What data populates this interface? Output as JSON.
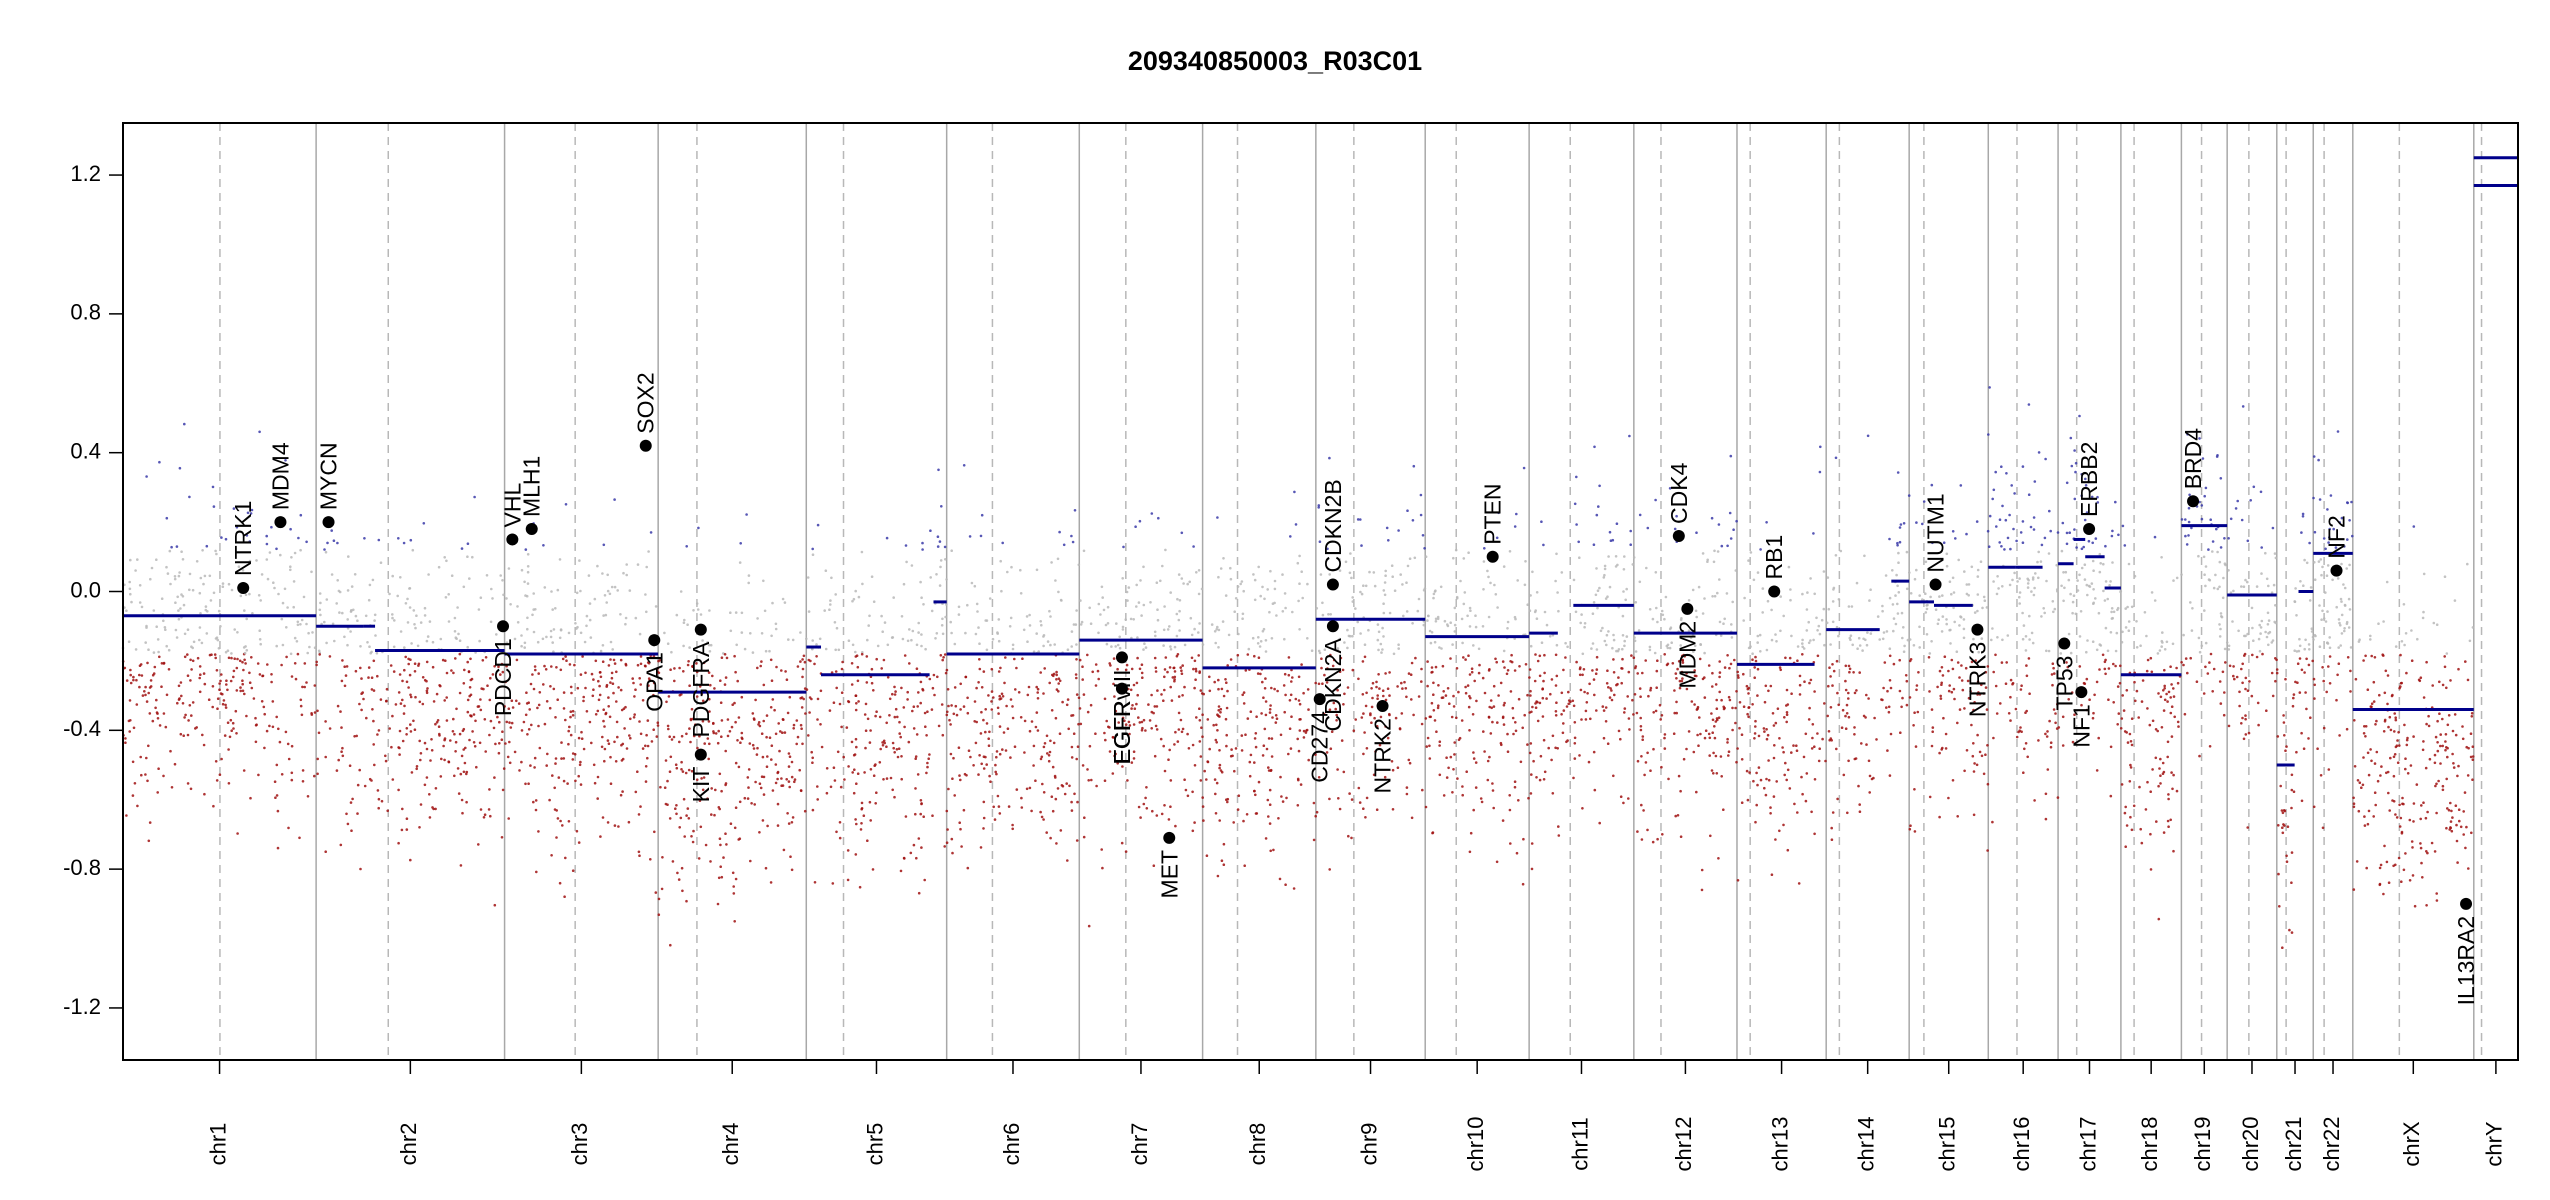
{
  "chart_data": {
    "type": "scatter",
    "title": "209340850003_R03C01",
    "xlabel": "",
    "ylabel": "",
    "ylim": [
      -1.35,
      1.35
    ],
    "y_ticks": [
      1.2,
      0.8,
      0.4,
      0.0,
      -0.4,
      -0.8,
      -1.2
    ],
    "y_tick_labels": [
      "1.2",
      "0.8",
      "0.4",
      "0.0",
      "-0.4",
      "-0.8",
      "-1.2"
    ],
    "grid": false,
    "point_colors": {
      "gain": "#3a3aa8",
      "neutral": "#b8b8b8",
      "loss": "#a01010",
      "segment": "#00008b",
      "gene": "#000000"
    },
    "chromosomes": [
      {
        "name": "chr1",
        "start": 0,
        "end": 249,
        "centromere": 125
      },
      {
        "name": "chr2",
        "start": 249,
        "end": 492,
        "centromere": 93
      },
      {
        "name": "chr3",
        "start": 492,
        "end": 690,
        "centromere": 91
      },
      {
        "name": "chr4",
        "start": 690,
        "end": 881,
        "centromere": 50
      },
      {
        "name": "chr5",
        "start": 881,
        "end": 1062,
        "centromere": 48
      },
      {
        "name": "chr6",
        "start": 1062,
        "end": 1233,
        "centromere": 59
      },
      {
        "name": "chr7",
        "start": 1233,
        "end": 1392,
        "centromere": 60
      },
      {
        "name": "chr8",
        "start": 1392,
        "end": 1538,
        "centromere": 45
      },
      {
        "name": "chr9",
        "start": 1538,
        "end": 1679,
        "centromere": 49
      },
      {
        "name": "chr10",
        "start": 1679,
        "end": 1813,
        "centromere": 40
      },
      {
        "name": "chr11",
        "start": 1813,
        "end": 1948,
        "centromere": 53
      },
      {
        "name": "chr12",
        "start": 1948,
        "end": 2081,
        "centromere": 35
      },
      {
        "name": "chr13",
        "start": 2081,
        "end": 2196,
        "centromere": 17
      },
      {
        "name": "chr14",
        "start": 2196,
        "end": 2303,
        "centromere": 17
      },
      {
        "name": "chr15",
        "start": 2303,
        "end": 2405,
        "centromere": 19
      },
      {
        "name": "chr16",
        "start": 2405,
        "end": 2495,
        "centromere": 37
      },
      {
        "name": "chr17",
        "start": 2495,
        "end": 2576,
        "centromere": 24
      },
      {
        "name": "chr18",
        "start": 2576,
        "end": 2654,
        "centromere": 17
      },
      {
        "name": "chr19",
        "start": 2654,
        "end": 2713,
        "centromere": 26
      },
      {
        "name": "chr20",
        "start": 2713,
        "end": 2777,
        "centromere": 28
      },
      {
        "name": "chr21",
        "start": 2777,
        "end": 2824,
        "centromere": 12
      },
      {
        "name": "chr22",
        "start": 2824,
        "end": 2875,
        "centromere": 14
      },
      {
        "name": "chrX",
        "start": 2875,
        "end": 3031,
        "centromere": 60
      },
      {
        "name": "chrY",
        "start": 3031,
        "end": 3088,
        "centromere": 10
      }
    ],
    "segments": [
      {
        "chr": "chr1",
        "x0": 0,
        "x1": 249,
        "y": -0.07
      },
      {
        "chr": "chr2",
        "x0": 249,
        "x1": 310,
        "y": -0.1
      },
      {
        "chr": "chr2",
        "x0": 310,
        "x1": 325,
        "y": -0.1
      },
      {
        "chr": "chr2",
        "x0": 325,
        "x1": 492,
        "y": -0.17
      },
      {
        "chr": "chr3",
        "x0": 492,
        "x1": 690,
        "y": -0.18
      },
      {
        "chr": "chr4",
        "x0": 690,
        "x1": 881,
        "y": -0.29
      },
      {
        "chr": "chr5",
        "x0": 881,
        "x1": 900,
        "y": -0.16
      },
      {
        "chr": "chr5",
        "x0": 900,
        "x1": 1040,
        "y": -0.24
      },
      {
        "chr": "chr5",
        "x0": 1045,
        "x1": 1062,
        "y": -0.03
      },
      {
        "chr": "chr6",
        "x0": 1062,
        "x1": 1233,
        "y": -0.18
      },
      {
        "chr": "chr7",
        "x0": 1233,
        "x1": 1392,
        "y": -0.14
      },
      {
        "chr": "chr8",
        "x0": 1392,
        "x1": 1538,
        "y": -0.22
      },
      {
        "chr": "chr9",
        "x0": 1538,
        "x1": 1679,
        "y": -0.08
      },
      {
        "chr": "chr10",
        "x0": 1679,
        "x1": 1813,
        "y": -0.13
      },
      {
        "chr": "chr11",
        "x0": 1813,
        "x1": 1850,
        "y": -0.12
      },
      {
        "chr": "chr11",
        "x0": 1870,
        "x1": 1948,
        "y": -0.04
      },
      {
        "chr": "chr12",
        "x0": 1948,
        "x1": 2081,
        "y": -0.12
      },
      {
        "chr": "chr13",
        "x0": 2081,
        "x1": 2181,
        "y": -0.21
      },
      {
        "chr": "chr14",
        "x0": 2196,
        "x1": 2265,
        "y": -0.11
      },
      {
        "chr": "chr14",
        "x0": 2280,
        "x1": 2303,
        "y": 0.03
      },
      {
        "chr": "chr15",
        "x0": 2303,
        "x1": 2335,
        "y": -0.03
      },
      {
        "chr": "chr15",
        "x0": 2335,
        "x1": 2385,
        "y": -0.04
      },
      {
        "chr": "chr16",
        "x0": 2405,
        "x1": 2440,
        "y": 0.07
      },
      {
        "chr": "chr16",
        "x0": 2440,
        "x1": 2475,
        "y": 0.07
      },
      {
        "chr": "chr17",
        "x0": 2495,
        "x1": 2515,
        "y": 0.08
      },
      {
        "chr": "chr17",
        "x0": 2515,
        "x1": 2530,
        "y": 0.15
      },
      {
        "chr": "chr17",
        "x0": 2530,
        "x1": 2555,
        "y": 0.1
      },
      {
        "chr": "chr17",
        "x0": 2555,
        "x1": 2576,
        "y": 0.01
      },
      {
        "chr": "chr18",
        "x0": 2576,
        "x1": 2654,
        "y": -0.24
      },
      {
        "chr": "chr19",
        "x0": 2654,
        "x1": 2713,
        "y": 0.19
      },
      {
        "chr": "chr20",
        "x0": 2713,
        "x1": 2777,
        "y": -0.01
      },
      {
        "chr": "chr21",
        "x0": 2777,
        "x1": 2800,
        "y": -0.5
      },
      {
        "chr": "chr21",
        "x0": 2805,
        "x1": 2824,
        "y": 0.0
      },
      {
        "chr": "chr22",
        "x0": 2824,
        "x1": 2875,
        "y": 0.11
      },
      {
        "chr": "chrX",
        "x0": 2875,
        "x1": 3031,
        "y": -0.34
      },
      {
        "chr": "chrY",
        "x0": 3031,
        "x1": 3088,
        "y": 1.17
      },
      {
        "chr": "chrY",
        "x0": 3031,
        "x1": 3088,
        "y": 1.25
      }
    ],
    "genes": [
      {
        "name": "NTRK1",
        "chr": "chr1",
        "x": 155,
        "y": 0.01
      },
      {
        "name": "MDM4",
        "chr": "chr1",
        "x": 203,
        "y": 0.2
      },
      {
        "name": "MYCN",
        "chr": "chr2",
        "x": 265,
        "y": 0.2
      },
      {
        "name": "VHL",
        "chr": "chr3",
        "x": 502,
        "y": 0.15
      },
      {
        "name": "PDCD1",
        "chr": "chr2",
        "x": 490,
        "y": -0.1
      },
      {
        "name": "MLH1",
        "chr": "chr3",
        "x": 527,
        "y": 0.18
      },
      {
        "name": "SOX2",
        "chr": "chr3",
        "x": 674,
        "y": 0.42
      },
      {
        "name": "OPA1",
        "chr": "chr3",
        "x": 685,
        "y": -0.14
      },
      {
        "name": "KIT",
        "chr": "chr4",
        "x": 745,
        "y": -0.47
      },
      {
        "name": "PDGFRA",
        "chr": "chr4",
        "x": 745,
        "y": -0.11
      },
      {
        "name": "EGFR",
        "chr": "chr7",
        "x": 1288,
        "y": -0.28
      },
      {
        "name": "EGFRvIII",
        "chr": "chr7",
        "x": 1288,
        "y": -0.19
      },
      {
        "name": "MET",
        "chr": "chr7",
        "x": 1349,
        "y": -0.71
      },
      {
        "name": "CD274",
        "chr": "chr9",
        "x": 1543,
        "y": -0.31
      },
      {
        "name": "CDKN2A",
        "chr": "chr9",
        "x": 1560,
        "y": -0.1
      },
      {
        "name": "CDKN2B",
        "chr": "chr9",
        "x": 1560,
        "y": 0.02
      },
      {
        "name": "NTRK2",
        "chr": "chr9",
        "x": 1624,
        "y": -0.33
      },
      {
        "name": "PTEN",
        "chr": "chr10",
        "x": 1766,
        "y": 0.1
      },
      {
        "name": "CDK4",
        "chr": "chr12",
        "x": 2006,
        "y": 0.16
      },
      {
        "name": "MDM2",
        "chr": "chr12",
        "x": 2017,
        "y": -0.05
      },
      {
        "name": "RB1",
        "chr": "chr13",
        "x": 2129,
        "y": 0.0
      },
      {
        "name": "NUTM1",
        "chr": "chr15",
        "x": 2337,
        "y": 0.02
      },
      {
        "name": "NTRK3",
        "chr": "chr15",
        "x": 2391,
        "y": -0.11
      },
      {
        "name": "TP53",
        "chr": "chr17",
        "x": 2503,
        "y": -0.15
      },
      {
        "name": "NF1",
        "chr": "chr17",
        "x": 2525,
        "y": -0.29
      },
      {
        "name": "ERBB2",
        "chr": "chr17",
        "x": 2535,
        "y": 0.18
      },
      {
        "name": "BRD4",
        "chr": "chr19",
        "x": 2669,
        "y": 0.26
      },
      {
        "name": "NF2",
        "chr": "chr22",
        "x": 2854,
        "y": 0.06
      },
      {
        "name": "IL13RA2",
        "chr": "chrX",
        "x": 3021,
        "y": -0.9
      }
    ]
  }
}
